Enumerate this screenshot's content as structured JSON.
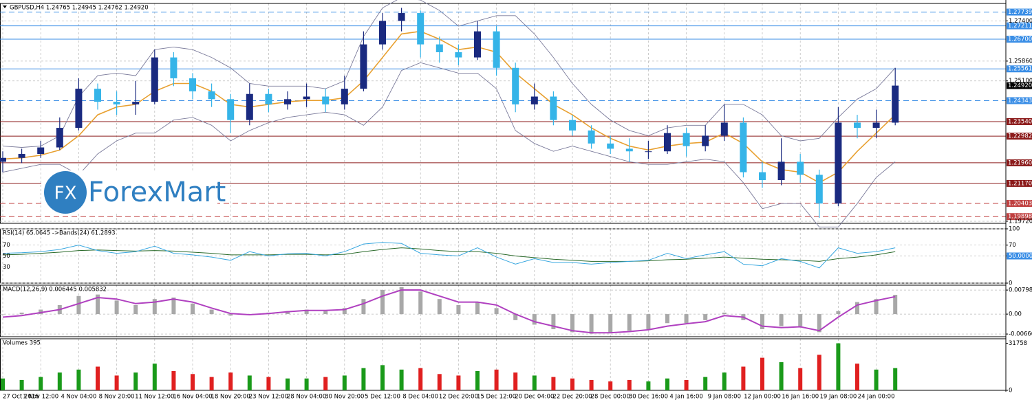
{
  "logo": {
    "mark": "FX",
    "text": "ForexMart"
  },
  "chart_data": [
    {
      "type": "candlestick",
      "title": "GBPUSD,H4  1.24765 1.24945 1.24762 1.24920",
      "up_color": "#1a2a80",
      "down_color": "#35b4e8",
      "open": [
        1.22,
        1.2215,
        1.223,
        1.2255,
        1.233,
        1.248,
        1.243,
        1.242,
        1.243,
        1.26,
        1.252,
        1.247,
        1.244,
        1.236,
        1.246,
        1.242,
        1.244,
        1.245,
        1.242,
        1.248,
        1.265,
        1.274,
        1.277,
        1.265,
        1.262,
        1.26,
        1.27,
        1.256,
        1.242,
        1.245,
        1.236,
        1.232,
        1.227,
        1.225,
        1.224,
        1.224,
        1.231,
        1.226,
        1.23,
        1.235,
        1.216,
        1.213,
        1.22,
        1.215,
        1.204,
        1.235,
        1.233,
        1.235
      ],
      "high": [
        1.224,
        1.225,
        1.228,
        1.237,
        1.252,
        1.25,
        1.247,
        1.251,
        1.263,
        1.262,
        1.254,
        1.25,
        1.246,
        1.25,
        1.248,
        1.247,
        1.25,
        1.248,
        1.253,
        1.27,
        1.277,
        1.279,
        1.278,
        1.268,
        1.265,
        1.274,
        1.272,
        1.258,
        1.25,
        1.247,
        1.238,
        1.234,
        1.23,
        1.229,
        1.228,
        1.234,
        1.233,
        1.234,
        1.242,
        1.237,
        1.22,
        1.229,
        1.223,
        1.217,
        1.241,
        1.238,
        1.24,
        1.256
      ],
      "low": [
        1.216,
        1.2195,
        1.2215,
        1.2245,
        1.232,
        1.24,
        1.238,
        1.238,
        1.242,
        1.249,
        1.244,
        1.241,
        1.231,
        1.234,
        1.239,
        1.24,
        1.241,
        1.239,
        1.24,
        1.247,
        1.263,
        1.27,
        1.26,
        1.258,
        1.257,
        1.259,
        1.253,
        1.239,
        1.24,
        1.234,
        1.23,
        1.225,
        1.223,
        1.22,
        1.221,
        1.223,
        1.222,
        1.224,
        1.228,
        1.214,
        1.21,
        1.211,
        1.212,
        1.1985,
        1.203,
        1.229,
        1.229,
        1.234
      ],
      "close": [
        1.2215,
        1.223,
        1.2255,
        1.233,
        1.248,
        1.243,
        1.242,
        1.243,
        1.26,
        1.252,
        1.247,
        1.244,
        1.236,
        1.246,
        1.242,
        1.244,
        1.245,
        1.242,
        1.248,
        1.265,
        1.274,
        1.277,
        1.265,
        1.262,
        1.26,
        1.27,
        1.256,
        1.242,
        1.245,
        1.236,
        1.232,
        1.227,
        1.225,
        1.224,
        1.224,
        1.231,
        1.226,
        1.23,
        1.235,
        1.216,
        1.213,
        1.22,
        1.215,
        1.204,
        1.235,
        1.233,
        1.235,
        1.2492
      ],
      "overlays": [
        {
          "color": "#e8a030",
          "values": [
            1.221,
            1.2215,
            1.2225,
            1.2245,
            1.23,
            1.238,
            1.241,
            1.242,
            1.247,
            1.25,
            1.25,
            1.247,
            1.242,
            1.241,
            1.242,
            1.243,
            1.2435,
            1.2435,
            1.2445,
            1.251,
            1.26,
            1.269,
            1.27,
            1.267,
            1.263,
            1.264,
            1.262,
            1.254,
            1.248,
            1.242,
            1.238,
            1.233,
            1.229,
            1.226,
            1.2245,
            1.226,
            1.227,
            1.2275,
            1.231,
            1.227,
            1.22,
            1.217,
            1.216,
            1.212,
            1.216,
            1.224,
            1.231,
            1.238
          ]
        },
        {
          "color": "#7a7a9a",
          "values": [
            1.226,
            1.2255,
            1.226,
            1.23,
            1.245,
            1.253,
            1.254,
            1.253,
            1.263,
            1.264,
            1.263,
            1.26,
            1.256,
            1.25,
            1.249,
            1.249,
            1.249,
            1.248,
            1.251,
            1.268,
            1.279,
            1.283,
            1.282,
            1.278,
            1.272,
            1.274,
            1.276,
            1.276,
            1.269,
            1.26,
            1.25,
            1.242,
            1.236,
            1.232,
            1.23,
            1.233,
            1.234,
            1.234,
            1.242,
            1.242,
            1.238,
            1.23,
            1.228,
            1.229,
            1.237,
            1.244,
            1.248,
            1.256
          ]
        },
        {
          "color": "#7a7a9a",
          "values": [
            1.216,
            1.2175,
            1.219,
            1.219,
            1.215,
            1.223,
            1.228,
            1.231,
            1.231,
            1.236,
            1.237,
            1.234,
            1.228,
            1.232,
            1.235,
            1.237,
            1.238,
            1.239,
            1.238,
            1.234,
            1.241,
            1.255,
            1.258,
            1.256,
            1.254,
            1.254,
            1.248,
            1.232,
            1.227,
            1.224,
            1.226,
            1.224,
            1.222,
            1.22,
            1.219,
            1.219,
            1.22,
            1.221,
            1.22,
            1.212,
            1.202,
            1.204,
            1.204,
            1.195,
            1.195,
            1.204,
            1.214,
            1.22
          ]
        }
      ],
      "levels": [
        {
          "value": 1.27739,
          "label": "1.27739",
          "color": "#3a8ee6",
          "dashed": true
        },
        {
          "value": 1.27211,
          "label": "1.27211",
          "color": "#3a8ee6",
          "dashed": false
        },
        {
          "value": 1.267,
          "label": "1.26700",
          "color": "#3a8ee6",
          "dashed": false
        },
        {
          "value": 1.25561,
          "label": "1.25561",
          "color": "#3a8ee6",
          "dashed": false
        },
        {
          "value": 1.24343,
          "label": "1.24343",
          "color": "#3a8ee6",
          "dashed": true
        },
        {
          "value": 1.2354,
          "label": "1.23540",
          "color": "#8b1a1a",
          "dashed": false
        },
        {
          "value": 1.22982,
          "label": "1.22982",
          "color": "#8b1a1a",
          "dashed": false
        },
        {
          "value": 1.2196,
          "label": "1.21960",
          "color": "#8b1a1a",
          "dashed": false
        },
        {
          "value": 1.2117,
          "label": "1.21170",
          "color": "#8b1a1a",
          "dashed": false
        },
        {
          "value": 1.20403,
          "label": "1.20403",
          "color": "#c04040",
          "dashed": true
        },
        {
          "value": 1.19898,
          "label": "1.19898",
          "color": "#c04040",
          "dashed": true
        }
      ],
      "current": {
        "value": 1.2492,
        "label": "1.24920"
      },
      "ylim": [
        1.1964,
        1.2807
      ],
      "yticks": [
        {
          "value": 1.274,
          "label": "1.27400"
        },
        {
          "value": 1.2586,
          "label": "1.25860"
        },
        {
          "value": 1.251,
          "label": "1.25100"
        },
        {
          "value": 1.1972,
          "label": "1.19720"
        }
      ],
      "grid": true
    },
    {
      "type": "line",
      "title": "RSI(14) 65.0645  ->Bands(24) 61.2893",
      "series": [
        {
          "color": "#2a6a2a",
          "values": [
            52,
            53,
            55,
            57,
            60,
            61,
            60,
            59,
            60,
            59,
            57,
            55,
            52,
            52,
            52,
            53,
            53,
            52,
            53,
            58,
            62,
            65,
            63,
            60,
            58,
            58,
            55,
            50,
            47,
            44,
            42,
            40,
            40,
            40,
            41,
            43,
            44,
            46,
            48,
            46,
            44,
            43,
            42,
            40,
            45,
            48,
            52,
            58
          ]
        },
        {
          "color": "#3aa8e0",
          "values": [
            55,
            56,
            58,
            62,
            70,
            60,
            55,
            58,
            68,
            55,
            52,
            48,
            42,
            58,
            50,
            54,
            55,
            50,
            58,
            72,
            75,
            73,
            55,
            52,
            50,
            65,
            48,
            35,
            45,
            38,
            38,
            35,
            38,
            40,
            42,
            55,
            45,
            52,
            58,
            35,
            32,
            45,
            40,
            28,
            65,
            55,
            58,
            65
          ]
        }
      ],
      "ylim": [
        0,
        100
      ],
      "yticks": [
        100,
        70,
        {
          "value": 50,
          "label": "50.0000"
        },
        0
      ],
      "left_ticks": [
        70,
        30,
        50
      ],
      "grid": true
    },
    {
      "type": "bar",
      "title": "MACD(12,26,9) 0.006445 0.005832",
      "series": [
        {
          "color": "#a8a8a8",
          "values": [
            0.0,
            0.0005,
            0.0015,
            0.003,
            0.006,
            0.0065,
            0.0045,
            0.003,
            0.005,
            0.0055,
            0.0035,
            0.0015,
            -0.0005,
            0.0,
            0.0005,
            0.001,
            0.0015,
            0.001,
            0.002,
            0.005,
            0.008,
            0.009,
            0.0075,
            0.005,
            0.003,
            0.004,
            0.002,
            -0.002,
            -0.0035,
            -0.005,
            -0.006,
            -0.0065,
            -0.006,
            -0.0055,
            -0.005,
            -0.003,
            -0.003,
            -0.002,
            0.0005,
            -0.002,
            -0.005,
            -0.004,
            -0.004,
            -0.006,
            0.001,
            0.004,
            0.005,
            0.0064
          ]
        },
        {
          "color": "#b040c0",
          "type": "line",
          "values": [
            -0.001,
            -0.0005,
            0.0005,
            0.0015,
            0.0035,
            0.0055,
            0.005,
            0.0035,
            0.004,
            0.005,
            0.004,
            0.002,
            0.0002,
            -0.0002,
            0.0002,
            0.0008,
            0.0012,
            0.0012,
            0.0015,
            0.0035,
            0.006,
            0.008,
            0.008,
            0.006,
            0.004,
            0.004,
            0.003,
            0.0,
            -0.0025,
            -0.004,
            -0.0055,
            -0.0062,
            -0.0062,
            -0.0058,
            -0.0052,
            -0.004,
            -0.0032,
            -0.0025,
            -0.0005,
            -0.001,
            -0.004,
            -0.0045,
            -0.0042,
            -0.0055,
            -0.001,
            0.003,
            0.0045,
            0.0058
          ]
        }
      ],
      "ylim": [
        -0.0075,
        0.0096
      ],
      "yticks": [
        0.00798,
        {
          "value": 0,
          "label": "0.00"
        },
        -0.006606
      ],
      "grid": true
    },
    {
      "type": "bar",
      "title": "Volumes 395",
      "up_color": "#1a9a1a",
      "down_color": "#e02020",
      "values": [
        8000,
        7000,
        9000,
        12000,
        14000,
        16000,
        10000,
        12000,
        18000,
        13000,
        11000,
        9000,
        12000,
        10000,
        9000,
        8000,
        8000,
        9000,
        10000,
        15000,
        17000,
        14000,
        15000,
        11000,
        10000,
        13000,
        14000,
        12000,
        10000,
        9000,
        8000,
        7000,
        6000,
        7000,
        6000,
        8000,
        7000,
        9000,
        12000,
        16000,
        22000,
        19000,
        15000,
        24000,
        31758,
        18000,
        14000,
        15000
      ],
      "categories": [
        "27 Oct 2016",
        null,
        "1 Nov 12:00",
        null,
        "4 Nov 04:00",
        null,
        "8 Nov 20:00",
        null,
        "11 Nov 12:00",
        null,
        "16 Nov 04:00",
        null,
        "18 Nov 20:00",
        null,
        "23 Nov 12:00",
        null,
        "28 Nov 04:00",
        null,
        "30 Nov 20:00",
        null,
        "5 Dec 12:00",
        null,
        "8 Dec 04:00",
        null,
        "12 Dec 20:00",
        null,
        "15 Dec 12:00",
        null,
        "20 Dec 04:00",
        null,
        "22 Dec 20:00",
        null,
        "28 Dec 00:00",
        null,
        "30 Dec 16:00",
        null,
        "4 Jan 16:00",
        null,
        "9 Jan 08:00",
        null,
        "12 Jan 00:00",
        null,
        "16 Jan 16:00",
        null,
        "19 Jan 08:00",
        null,
        "24 Jan 00:00",
        null
      ],
      "ylim": [
        0,
        34800
      ],
      "yticks": [
        31758,
        0
      ],
      "grid": false
    }
  ]
}
